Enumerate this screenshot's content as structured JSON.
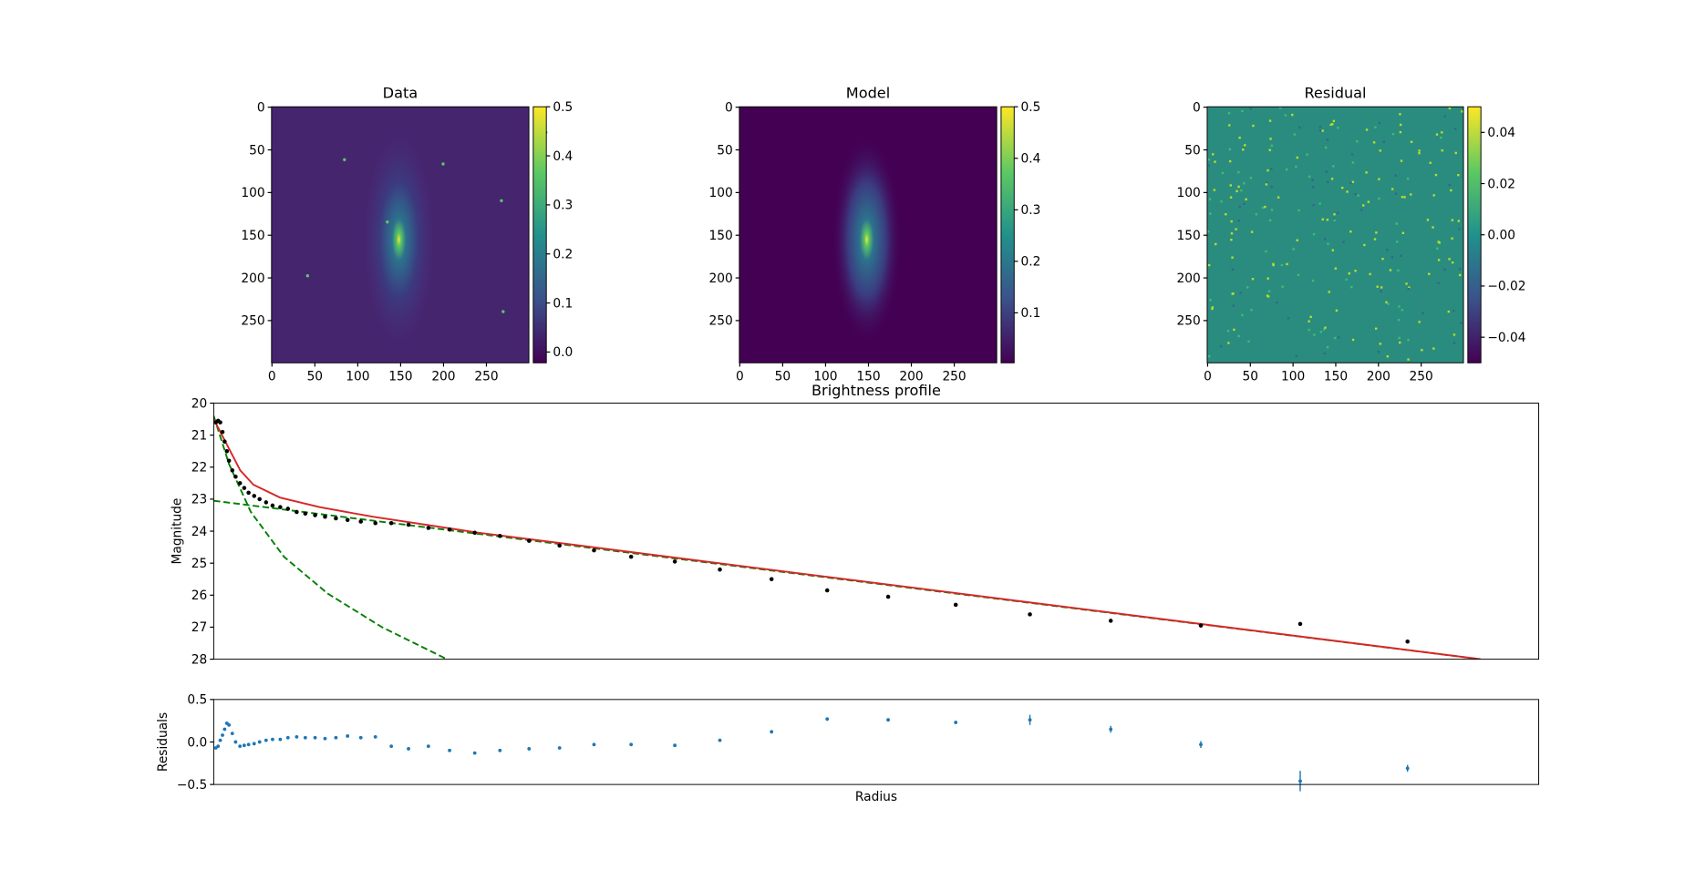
{
  "chart_data": [
    {
      "type": "image",
      "title": "Data",
      "xlim": [
        -0.5,
        299.5
      ],
      "ylim": [
        299.5,
        -0.5
      ],
      "xticks": [
        0,
        50,
        100,
        150,
        200,
        250
      ],
      "yticks": [
        0,
        50,
        100,
        150,
        200,
        250
      ],
      "clim": [
        -0.022,
        0.5
      ],
      "cticks": [
        {
          "value": 0,
          "label": "0.0"
        },
        0.1,
        0.2,
        0.3,
        0.4,
        0.5
      ]
    },
    {
      "type": "image",
      "title": "Model",
      "xlim": [
        -0.5,
        299.5
      ],
      "ylim": [
        299.5,
        -0.5
      ],
      "xticks": [
        0,
        50,
        100,
        150,
        200,
        250
      ],
      "yticks": [
        0,
        50,
        100,
        150,
        200,
        250
      ],
      "clim": [
        0.003,
        0.5
      ],
      "cticks": [
        0.1,
        0.2,
        0.3,
        0.4,
        0.5
      ]
    },
    {
      "type": "image",
      "title": "Residual",
      "xlim": [
        -0.5,
        299.5
      ],
      "ylim": [
        299.5,
        -0.5
      ],
      "xticks": [
        0,
        50,
        100,
        150,
        200,
        250
      ],
      "yticks": [
        0,
        50,
        100,
        150,
        200,
        250
      ],
      "clim": [
        -0.05,
        0.05
      ],
      "cticks": [
        {
          "value": -0.04,
          "label": "−0.04"
        },
        {
          "value": -0.02,
          "label": "−0.02"
        },
        {
          "value": 0,
          "label": "0.00"
        },
        0.02,
        0.04
      ]
    },
    {
      "type": "profile",
      "title": "Brightness profile",
      "ylabel": "Magnitude",
      "xlim": [
        0,
        100
      ],
      "xticks": [],
      "ylim": [
        28,
        20
      ],
      "yticks": [
        20,
        21,
        22,
        23,
        24,
        25,
        26,
        27,
        28
      ],
      "series": [
        {
          "kind": "dashed",
          "color": "#008000",
          "x": [
            0,
            95.6
          ],
          "values": [
            23.05,
            28
          ]
        },
        {
          "kind": "dashed",
          "color": "#008000",
          "x": [
            0,
            1.15,
            2.8,
            5.3,
            8.6,
            12.7,
            17.6
          ],
          "values": [
            20.4,
            21.9,
            23.4,
            24.8,
            25.95,
            27.0,
            28
          ]
        },
        {
          "kind": "solid",
          "color": "#d62728",
          "x": [
            0,
            1,
            2,
            3,
            5,
            8,
            12,
            20,
            40,
            95.6
          ],
          "values": [
            20.5,
            21.3,
            22.1,
            22.55,
            22.95,
            23.25,
            23.55,
            24.05,
            25.1,
            28
          ]
        },
        {
          "kind": "points",
          "color": "#000000",
          "x": [
            0.16,
            0.33,
            0.49,
            0.66,
            0.82,
            0.99,
            1.15,
            1.4,
            1.65,
            1.98,
            2.3,
            2.63,
            3.05,
            3.46,
            3.95,
            4.44,
            5.02,
            5.6,
            6.26,
            6.91,
            7.65,
            8.4,
            9.22,
            10.1,
            11.1,
            12.2,
            13.4,
            14.7,
            16.2,
            17.8,
            19.7,
            21.6,
            23.8,
            26.1,
            28.7,
            31.5,
            34.8,
            38.2,
            42.1,
            46.3,
            50.9,
            56.0,
            61.6,
            67.7,
            74.5,
            82.0,
            90.1
          ],
          "values": [
            20.6,
            20.55,
            20.6,
            20.9,
            21.2,
            21.5,
            21.8,
            22.1,
            22.3,
            22.5,
            22.65,
            22.8,
            22.9,
            23.0,
            23.1,
            23.2,
            23.25,
            23.3,
            23.4,
            23.45,
            23.5,
            23.55,
            23.6,
            23.65,
            23.7,
            23.75,
            23.75,
            23.8,
            23.9,
            23.95,
            24.05,
            24.15,
            24.3,
            24.45,
            24.6,
            24.8,
            24.95,
            25.2,
            25.5,
            25.85,
            26.05,
            26.3,
            26.6,
            26.8,
            26.95,
            26.9,
            27.45
          ]
        }
      ]
    },
    {
      "type": "errorbar",
      "xlabel": "Radius",
      "ylabel": "Residuals",
      "color": "#1f77b4",
      "xlim": [
        0,
        100
      ],
      "xticks": [],
      "ylim": [
        -0.5,
        0.5
      ],
      "yticks": [
        0.5,
        {
          "value": 0,
          "label": "0.0"
        },
        {
          "value": -0.5,
          "label": "−0.5"
        }
      ],
      "x": [
        0.16,
        0.33,
        0.49,
        0.66,
        0.82,
        0.99,
        1.15,
        1.4,
        1.65,
        1.98,
        2.3,
        2.63,
        3.05,
        3.46,
        3.95,
        4.44,
        5.02,
        5.6,
        6.26,
        6.91,
        7.65,
        8.4,
        9.22,
        10.1,
        11.1,
        12.2,
        13.4,
        14.7,
        16.2,
        17.8,
        19.7,
        21.6,
        23.8,
        26.1,
        28.7,
        31.5,
        34.8,
        38.2,
        42.1,
        46.3,
        50.9,
        56.0,
        61.6,
        67.7,
        74.5,
        82.0,
        90.1
      ],
      "values": [
        -0.07,
        -0.05,
        0.02,
        0.08,
        0.15,
        0.22,
        0.2,
        0.1,
        0.0,
        -0.05,
        -0.04,
        -0.03,
        -0.02,
        0.0,
        0.02,
        0.03,
        0.03,
        0.05,
        0.06,
        0.05,
        0.05,
        0.04,
        0.05,
        0.07,
        0.05,
        0.06,
        -0.05,
        -0.08,
        -0.05,
        -0.1,
        -0.13,
        -0.1,
        -0.08,
        -0.07,
        -0.03,
        -0.03,
        -0.04,
        0.02,
        0.12,
        0.27,
        0.26,
        0.23,
        0.26,
        0.15,
        -0.03,
        -0.46,
        -0.31
      ],
      "errors": [
        0.01,
        0.01,
        0.01,
        0.01,
        0.01,
        0.01,
        0.01,
        0.01,
        0.01,
        0.01,
        0.01,
        0.01,
        0.01,
        0.01,
        0.01,
        0.01,
        0.01,
        0.01,
        0.01,
        0.01,
        0.01,
        0.01,
        0.01,
        0.01,
        0.01,
        0.01,
        0.01,
        0.01,
        0.01,
        0.01,
        0.01,
        0.01,
        0.01,
        0.01,
        0.01,
        0.01,
        0.01,
        0.01,
        0.02,
        0.02,
        0.02,
        0.02,
        0.06,
        0.04,
        0.04,
        0.12,
        0.04
      ]
    }
  ]
}
